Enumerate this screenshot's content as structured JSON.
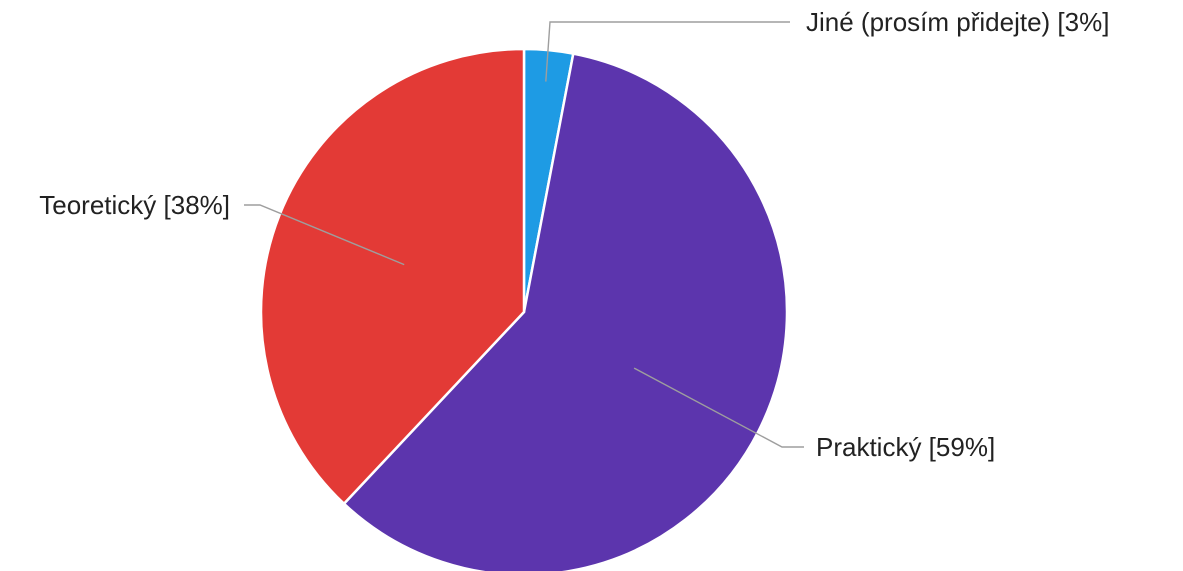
{
  "chart_data": {
    "type": "pie",
    "title": "",
    "slices": [
      {
        "label": "Jiné (prosím přidejte) [3%]",
        "category": "Jiné (prosím přidejte)",
        "value": 3,
        "color": "#1e9be4"
      },
      {
        "label": "Praktický [59%]",
        "category": "Praktický",
        "value": 59,
        "color": "#5c35ad"
      },
      {
        "label": "Teoretický [38%]",
        "category": "Teoretický",
        "value": 38,
        "color": "#e33a36"
      }
    ],
    "start": "12 o'clock",
    "direction": "clockwise",
    "legend": "none",
    "labels": "outside with leader lines"
  }
}
